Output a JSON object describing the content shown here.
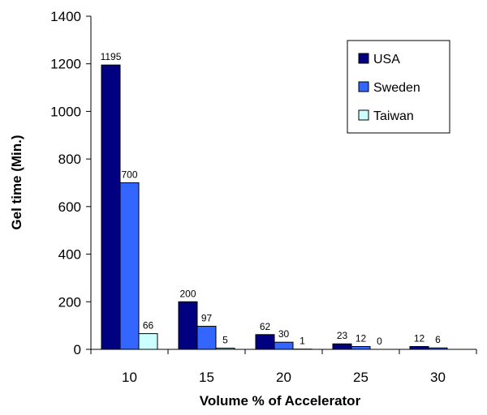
{
  "chart_data": {
    "type": "bar",
    "categories": [
      "10",
      "15",
      "20",
      "25",
      "30"
    ],
    "series": [
      {
        "name": "USA",
        "values": [
          1195,
          200,
          62,
          23,
          12
        ],
        "color": "#000080"
      },
      {
        "name": "Sweden",
        "values": [
          700,
          97,
          30,
          12,
          6
        ],
        "color": "#3366FF"
      },
      {
        "name": "Taiwan",
        "values": [
          66,
          5,
          1,
          0,
          null
        ],
        "color": "#CCFFFF"
      }
    ],
    "data_labels": [
      [
        "1195",
        "200",
        "62",
        "23",
        "12"
      ],
      [
        "700",
        "97",
        "30",
        "12",
        "6"
      ],
      [
        "66",
        "5",
        "1",
        "0",
        ""
      ]
    ],
    "title": "",
    "xlabel": "Volume % of Accelerator",
    "ylabel": "Gel time (Min.)",
    "ylim": [
      0,
      1400
    ],
    "yticks": [
      "0",
      "200",
      "400",
      "600",
      "800",
      "1000",
      "1200",
      "1400"
    ],
    "grid": false,
    "legend_position": "top-right"
  }
}
